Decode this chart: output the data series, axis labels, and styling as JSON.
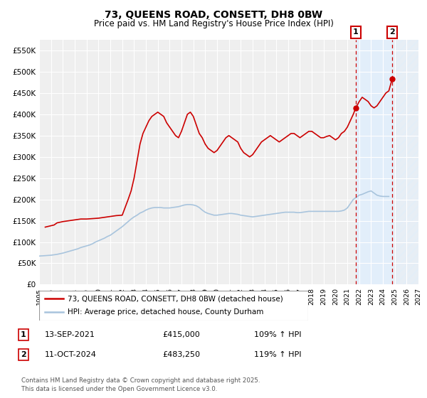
{
  "title": "73, QUEENS ROAD, CONSETT, DH8 0BW",
  "subtitle": "Price paid vs. HM Land Registry's House Price Index (HPI)",
  "title_fontsize": 10,
  "subtitle_fontsize": 8.5,
  "ylim": [
    0,
    575000
  ],
  "xlim": [
    1995.0,
    2027.0
  ],
  "yticks": [
    0,
    50000,
    100000,
    150000,
    200000,
    250000,
    300000,
    350000,
    400000,
    450000,
    500000,
    550000
  ],
  "ytick_labels": [
    "£0",
    "£50K",
    "£100K",
    "£150K",
    "£200K",
    "£250K",
    "£300K",
    "£350K",
    "£400K",
    "£450K",
    "£500K",
    "£550K"
  ],
  "xticks": [
    1995,
    1996,
    1997,
    1998,
    1999,
    2000,
    2001,
    2002,
    2003,
    2004,
    2005,
    2006,
    2007,
    2008,
    2009,
    2010,
    2011,
    2012,
    2013,
    2014,
    2015,
    2016,
    2017,
    2018,
    2019,
    2020,
    2021,
    2022,
    2023,
    2024,
    2025,
    2026,
    2027
  ],
  "background_color": "#ffffff",
  "plot_bg_color": "#efefef",
  "grid_color": "#ffffff",
  "hpi_line_color": "#a8c4dd",
  "price_line_color": "#cc0000",
  "shade_color": "#ddeeff",
  "hatch_color": "#c0c0c0",
  "vline_color": "#cc0000",
  "event1_x": 2021.708,
  "event1_y": 415000,
  "event1_label": "1",
  "event1_date": "13-SEP-2021",
  "event1_price": "£415,000",
  "event1_hpi": "109% ↑ HPI",
  "event2_x": 2024.783,
  "event2_y": 483250,
  "event2_label": "2",
  "event2_date": "11-OCT-2024",
  "event2_price": "£483,250",
  "event2_hpi": "119% ↑ HPI",
  "legend_line1": "73, QUEENS ROAD, CONSETT, DH8 0BW (detached house)",
  "legend_line2": "HPI: Average price, detached house, County Durham",
  "footer_line1": "Contains HM Land Registry data © Crown copyright and database right 2025.",
  "footer_line2": "This data is licensed under the Open Government Licence v3.0.",
  "hpi_x": [
    1995.0,
    1995.25,
    1995.5,
    1995.75,
    1996.0,
    1996.25,
    1996.5,
    1996.75,
    1997.0,
    1997.25,
    1997.5,
    1997.75,
    1998.0,
    1998.25,
    1998.5,
    1998.75,
    1999.0,
    1999.25,
    1999.5,
    1999.75,
    2000.0,
    2000.25,
    2000.5,
    2000.75,
    2001.0,
    2001.25,
    2001.5,
    2001.75,
    2002.0,
    2002.25,
    2002.5,
    2002.75,
    2003.0,
    2003.25,
    2003.5,
    2003.75,
    2004.0,
    2004.25,
    2004.5,
    2004.75,
    2005.0,
    2005.25,
    2005.5,
    2005.75,
    2006.0,
    2006.25,
    2006.5,
    2006.75,
    2007.0,
    2007.25,
    2007.5,
    2007.75,
    2008.0,
    2008.25,
    2008.5,
    2008.75,
    2009.0,
    2009.25,
    2009.5,
    2009.75,
    2010.0,
    2010.25,
    2010.5,
    2010.75,
    2011.0,
    2011.25,
    2011.5,
    2011.75,
    2012.0,
    2012.25,
    2012.5,
    2012.75,
    2013.0,
    2013.25,
    2013.5,
    2013.75,
    2014.0,
    2014.25,
    2014.5,
    2014.75,
    2015.0,
    2015.25,
    2015.5,
    2015.75,
    2016.0,
    2016.25,
    2016.5,
    2016.75,
    2017.0,
    2017.25,
    2017.5,
    2017.75,
    2018.0,
    2018.25,
    2018.5,
    2018.75,
    2019.0,
    2019.25,
    2019.5,
    2019.75,
    2020.0,
    2020.25,
    2020.5,
    2020.75,
    2021.0,
    2021.25,
    2021.5,
    2021.75,
    2022.0,
    2022.25,
    2022.5,
    2022.75,
    2023.0,
    2023.25,
    2023.5,
    2023.75,
    2024.0,
    2024.25,
    2024.5
  ],
  "hpi_y": [
    67000,
    67500,
    68000,
    68500,
    69000,
    70000,
    71000,
    72500,
    74000,
    76000,
    78000,
    80000,
    82000,
    84000,
    87000,
    89000,
    91000,
    93000,
    96000,
    100000,
    103000,
    106000,
    109000,
    113000,
    116000,
    121000,
    126000,
    131000,
    136000,
    142000,
    148000,
    154000,
    159000,
    163000,
    168000,
    171000,
    175000,
    178000,
    180000,
    181000,
    181000,
    181000,
    180000,
    180000,
    180000,
    181000,
    182000,
    183000,
    185000,
    187000,
    188000,
    188000,
    187000,
    185000,
    181000,
    175000,
    170000,
    167000,
    165000,
    163000,
    163000,
    164000,
    165000,
    166000,
    167000,
    167000,
    166000,
    165000,
    163000,
    162000,
    161000,
    160000,
    159000,
    160000,
    161000,
    162000,
    163000,
    164000,
    165000,
    166000,
    167000,
    168000,
    169000,
    170000,
    170000,
    170000,
    170000,
    169000,
    169000,
    170000,
    171000,
    172000,
    172000,
    172000,
    172000,
    172000,
    172000,
    172000,
    172000,
    172000,
    172000,
    172000,
    173000,
    175000,
    180000,
    190000,
    200000,
    205000,
    210000,
    212000,
    215000,
    218000,
    220000,
    215000,
    210000,
    208000,
    207000,
    207000,
    207000
  ],
  "price_x": [
    1995.5,
    1996.25,
    1996.5,
    1997.0,
    1997.5,
    1998.0,
    1998.5,
    1999.0,
    1999.5,
    2000.0,
    2000.5,
    2001.0,
    2001.5,
    2002.0,
    2002.5,
    2002.75,
    2003.0,
    2003.25,
    2003.5,
    2003.75,
    2004.0,
    2004.25,
    2004.5,
    2004.75,
    2005.0,
    2005.25,
    2005.5,
    2005.75,
    2006.0,
    2006.25,
    2006.5,
    2006.75,
    2007.0,
    2007.25,
    2007.5,
    2007.75,
    2008.0,
    2008.25,
    2008.5,
    2008.75,
    2009.0,
    2009.25,
    2009.5,
    2009.75,
    2010.0,
    2010.25,
    2010.5,
    2010.75,
    2011.0,
    2011.25,
    2011.5,
    2011.75,
    2012.0,
    2012.25,
    2012.5,
    2012.75,
    2013.0,
    2013.25,
    2013.5,
    2013.75,
    2014.0,
    2014.25,
    2014.5,
    2014.75,
    2015.0,
    2015.25,
    2015.5,
    2015.75,
    2016.0,
    2016.25,
    2016.5,
    2016.75,
    2017.0,
    2017.25,
    2017.5,
    2017.75,
    2018.0,
    2018.25,
    2018.5,
    2018.75,
    2019.0,
    2019.25,
    2019.5,
    2019.75,
    2020.0,
    2020.25,
    2020.5,
    2020.75,
    2021.0,
    2021.25,
    2021.5,
    2021.708,
    2022.0,
    2022.25,
    2022.5,
    2022.75,
    2023.0,
    2023.25,
    2023.5,
    2023.75,
    2024.0,
    2024.25,
    2024.5,
    2024.783
  ],
  "price_y": [
    135000,
    140000,
    145000,
    148000,
    150000,
    152000,
    154000,
    154000,
    155000,
    156000,
    158000,
    160000,
    162000,
    163000,
    200000,
    220000,
    250000,
    290000,
    330000,
    355000,
    370000,
    385000,
    395000,
    400000,
    405000,
    400000,
    395000,
    380000,
    370000,
    360000,
    350000,
    345000,
    360000,
    380000,
    400000,
    405000,
    395000,
    375000,
    355000,
    345000,
    330000,
    320000,
    315000,
    310000,
    315000,
    325000,
    335000,
    345000,
    350000,
    345000,
    340000,
    335000,
    320000,
    310000,
    305000,
    300000,
    305000,
    315000,
    325000,
    335000,
    340000,
    345000,
    350000,
    345000,
    340000,
    335000,
    340000,
    345000,
    350000,
    355000,
    355000,
    350000,
    345000,
    350000,
    355000,
    360000,
    360000,
    355000,
    350000,
    345000,
    345000,
    348000,
    350000,
    345000,
    340000,
    345000,
    355000,
    360000,
    370000,
    385000,
    400000,
    415000,
    430000,
    440000,
    435000,
    430000,
    420000,
    415000,
    420000,
    430000,
    440000,
    450000,
    455000,
    483250
  ]
}
